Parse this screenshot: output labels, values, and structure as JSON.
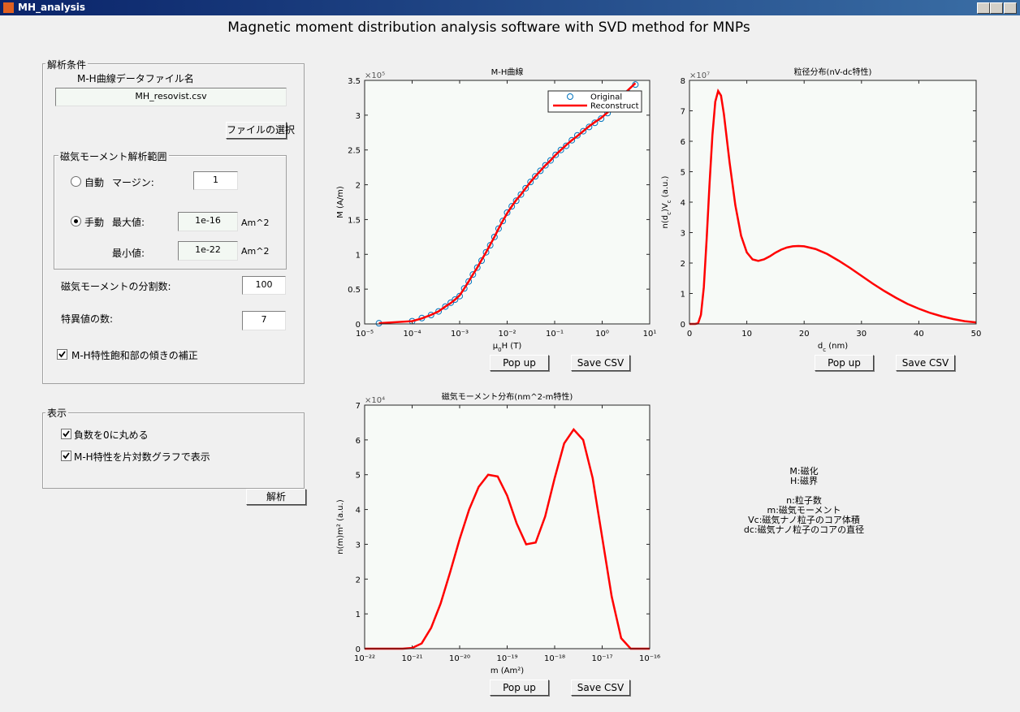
{
  "window": {
    "title": "MH_analysis"
  },
  "header": {
    "title": "Magnetic moment distribution analysis software with SVD method for MNPs"
  },
  "conditions": {
    "title": "解析条件",
    "file_label": "M-H曲線データファイル名",
    "file_name": "MH_resovist.csv",
    "select_button": "ファイルの選択",
    "range": {
      "title": "磁気モーメント解析範囲",
      "auto": "自動",
      "margin_label": "マージン:",
      "margin_value": "1",
      "manual": "手動",
      "max_label": "最大値:",
      "max_value": "1e-16",
      "max_unit": "Am^2",
      "min_label": "最小値:",
      "min_value": "1e-22",
      "min_unit": "Am^2"
    },
    "divisions_label": "磁気モーメントの分割数:",
    "divisions_value": "100",
    "sv_label": "特異値の数:",
    "sv_value": "7",
    "correction": "M-H特性飽和部の傾きの補正"
  },
  "display": {
    "title": "表示",
    "round_negative": "負数を0に丸める",
    "semilog": "M-H特性を片対数グラフで表示",
    "analyze_button": "解析"
  },
  "notes": [
    "M:磁化",
    "H:磁界",
    "n:粒子数",
    "m:磁気モーメント",
    "Vc:磁気ナノ粒子のコア体積",
    "dc:磁気ナノ粒子のコアの直径"
  ],
  "chart_data": [
    {
      "type": "line",
      "title": "M-H曲線",
      "xscale": "log",
      "legend": "northeast",
      "xlabel": [
        {
          "text": "μ"
        },
        {
          "text": "0",
          "shift": "sub"
        },
        {
          "text": "H (T)"
        }
      ],
      "ylabel": [
        {
          "text": "M (A/m)"
        }
      ],
      "y_exponent": "×10⁵",
      "xlim": [
        1e-05,
        10
      ],
      "xticks": [
        {
          "value": 1e-05,
          "label": "10⁻⁵"
        },
        {
          "value": 0.0001,
          "label": "10⁻⁴"
        },
        {
          "value": 0.001,
          "label": "10⁻³"
        },
        {
          "value": 0.01,
          "label": "10⁻²"
        },
        {
          "value": 0.1,
          "label": "10⁻¹"
        },
        {
          "value": 1,
          "label": "10⁰"
        },
        {
          "value": 10,
          "label": "10¹"
        }
      ],
      "ylim": [
        0,
        3.5
      ],
      "yticks": [
        0,
        0.5,
        1,
        1.5,
        2,
        2.5,
        3,
        3.5
      ],
      "x": [
        2e-05,
        0.0001,
        0.00016,
        0.00025,
        0.00036,
        0.0005,
        0.00065,
        0.0008,
        0.001,
        0.00125,
        0.00155,
        0.0019,
        0.00235,
        0.0029,
        0.0036,
        0.0044,
        0.0054,
        0.0066,
        0.0081,
        0.01,
        0.0125,
        0.0155,
        0.0195,
        0.0245,
        0.031,
        0.039,
        0.05,
        0.064,
        0.082,
        0.105,
        0.135,
        0.175,
        0.23,
        0.3,
        0.4,
        0.53,
        0.7,
        0.95,
        1.3,
        1.8,
        2.5,
        3.5,
        5
      ],
      "series": [
        {
          "name": "Original",
          "color": "#0072bd",
          "style": "marker",
          "values": [
            0.01,
            0.04,
            0.084,
            0.128,
            0.18,
            0.25,
            0.305,
            0.35,
            0.4,
            0.51,
            0.61,
            0.71,
            0.81,
            0.91,
            1.03,
            1.13,
            1.25,
            1.37,
            1.48,
            1.6,
            1.69,
            1.77,
            1.86,
            1.95,
            2.04,
            2.12,
            2.2,
            2.28,
            2.35,
            2.43,
            2.5,
            2.56,
            2.64,
            2.71,
            2.77,
            2.83,
            2.89,
            2.95,
            3.03,
            3.12,
            3.22,
            3.32,
            3.44
          ]
        },
        {
          "name": "Reconstruct",
          "color": "#ff0000",
          "style": "line",
          "values": [
            0.01,
            0.04,
            0.08,
            0.13,
            0.18,
            0.25,
            0.3,
            0.35,
            0.41,
            0.51,
            0.61,
            0.71,
            0.81,
            0.92,
            1.03,
            1.14,
            1.25,
            1.37,
            1.48,
            1.59,
            1.69,
            1.78,
            1.86,
            1.95,
            2.04,
            2.12,
            2.2,
            2.28,
            2.35,
            2.43,
            2.5,
            2.57,
            2.64,
            2.7,
            2.77,
            2.84,
            2.9,
            2.96,
            3.04,
            3.13,
            3.24,
            3.36,
            3.46
          ]
        }
      ],
      "buttons": [
        "Pop up",
        "Save CSV"
      ]
    },
    {
      "type": "line",
      "title": "粒径分布(nV-dc特性)",
      "xscale": "linear",
      "xlabel": [
        {
          "text": "d"
        },
        {
          "text": "c",
          "shift": "sub"
        },
        {
          "text": " (nm)"
        }
      ],
      "ylabel": [
        {
          "text": "n(d"
        },
        {
          "text": "c",
          "shift": "sub"
        },
        {
          "text": ")V"
        },
        {
          "text": "c",
          "shift": "sub"
        },
        {
          "text": " (a.u.)"
        }
      ],
      "y_exponent": "×10⁷",
      "xlim": [
        0,
        50
      ],
      "xticks": [
        0,
        10,
        20,
        30,
        40,
        50
      ],
      "ylim": [
        0,
        8
      ],
      "yticks": [
        0,
        1,
        2,
        3,
        4,
        5,
        6,
        7,
        8
      ],
      "x": [
        0,
        1,
        1.5,
        2,
        2.5,
        3,
        3.5,
        4,
        4.5,
        5,
        5.5,
        6,
        7,
        8,
        9,
        10,
        11,
        12,
        13,
        14,
        15,
        16,
        17,
        18,
        19,
        20,
        22,
        24,
        26,
        28,
        30,
        32,
        34,
        36,
        38,
        40,
        42,
        44,
        46,
        48,
        50
      ],
      "series": [
        {
          "name": "n(dc)Vc",
          "color": "#ff0000",
          "style": "line",
          "values": [
            0,
            0,
            0.02,
            0.3,
            1.2,
            2.8,
            4.6,
            6.2,
            7.3,
            7.65,
            7.5,
            6.9,
            5.3,
            3.9,
            2.9,
            2.35,
            2.12,
            2.07,
            2.12,
            2.22,
            2.34,
            2.44,
            2.51,
            2.55,
            2.56,
            2.55,
            2.46,
            2.3,
            2.08,
            1.84,
            1.58,
            1.32,
            1.08,
            0.86,
            0.66,
            0.5,
            0.36,
            0.25,
            0.16,
            0.09,
            0.05
          ]
        }
      ],
      "buttons": [
        "Pop up",
        "Save CSV"
      ]
    },
    {
      "type": "line",
      "title": "磁気モーメント分布(nm^2-m特性)",
      "xscale": "log",
      "xlabel": [
        {
          "text": "m (Am²)"
        }
      ],
      "ylabel": [
        {
          "text": "n(m)m² (a.u.)"
        }
      ],
      "y_exponent": "×10⁴",
      "xlim": [
        1e-22,
        1e-16
      ],
      "xticks": [
        {
          "value": 1e-22,
          "label": "10⁻²²"
        },
        {
          "value": 1e-21,
          "label": "10⁻²¹"
        },
        {
          "value": 1e-20,
          "label": "10⁻²⁰"
        },
        {
          "value": 1e-19,
          "label": "10⁻¹⁹"
        },
        {
          "value": 1e-18,
          "label": "10⁻¹⁸"
        },
        {
          "value": 1e-17,
          "label": "10⁻¹⁷"
        },
        {
          "value": 1e-16,
          "label": "10⁻¹⁶"
        }
      ],
      "ylim": [
        0,
        7
      ],
      "yticks": [
        0,
        1,
        2,
        3,
        4,
        5,
        6,
        7
      ],
      "x": [
        1e-22,
        1.585e-22,
        2.512e-22,
        3.981e-22,
        6.31e-22,
        1e-21,
        1.585e-21,
        2.512e-21,
        3.981e-21,
        6.31e-21,
        1e-20,
        1.585e-20,
        2.512e-20,
        3.981e-20,
        6.31e-20,
        1e-19,
        1.585e-19,
        2.512e-19,
        3.981e-19,
        6.31e-19,
        1e-18,
        1.585e-18,
        2.512e-18,
        3.981e-18,
        6.31e-18,
        1e-17,
        1.585e-17,
        2.512e-17,
        3.981e-17,
        6.31e-17,
        1e-16
      ],
      "series": [
        {
          "name": "n(m)m²",
          "color": "#ff0000",
          "style": "line",
          "values": [
            0,
            0,
            0,
            0,
            0,
            0.02,
            0.15,
            0.6,
            1.3,
            2.2,
            3.15,
            4.0,
            4.65,
            5.0,
            4.95,
            4.4,
            3.6,
            3.0,
            3.05,
            3.8,
            4.9,
            5.9,
            6.3,
            6.0,
            4.9,
            3.2,
            1.5,
            0.3,
            0,
            0,
            0
          ]
        }
      ],
      "buttons": [
        "Pop up",
        "Save CSV"
      ]
    }
  ]
}
